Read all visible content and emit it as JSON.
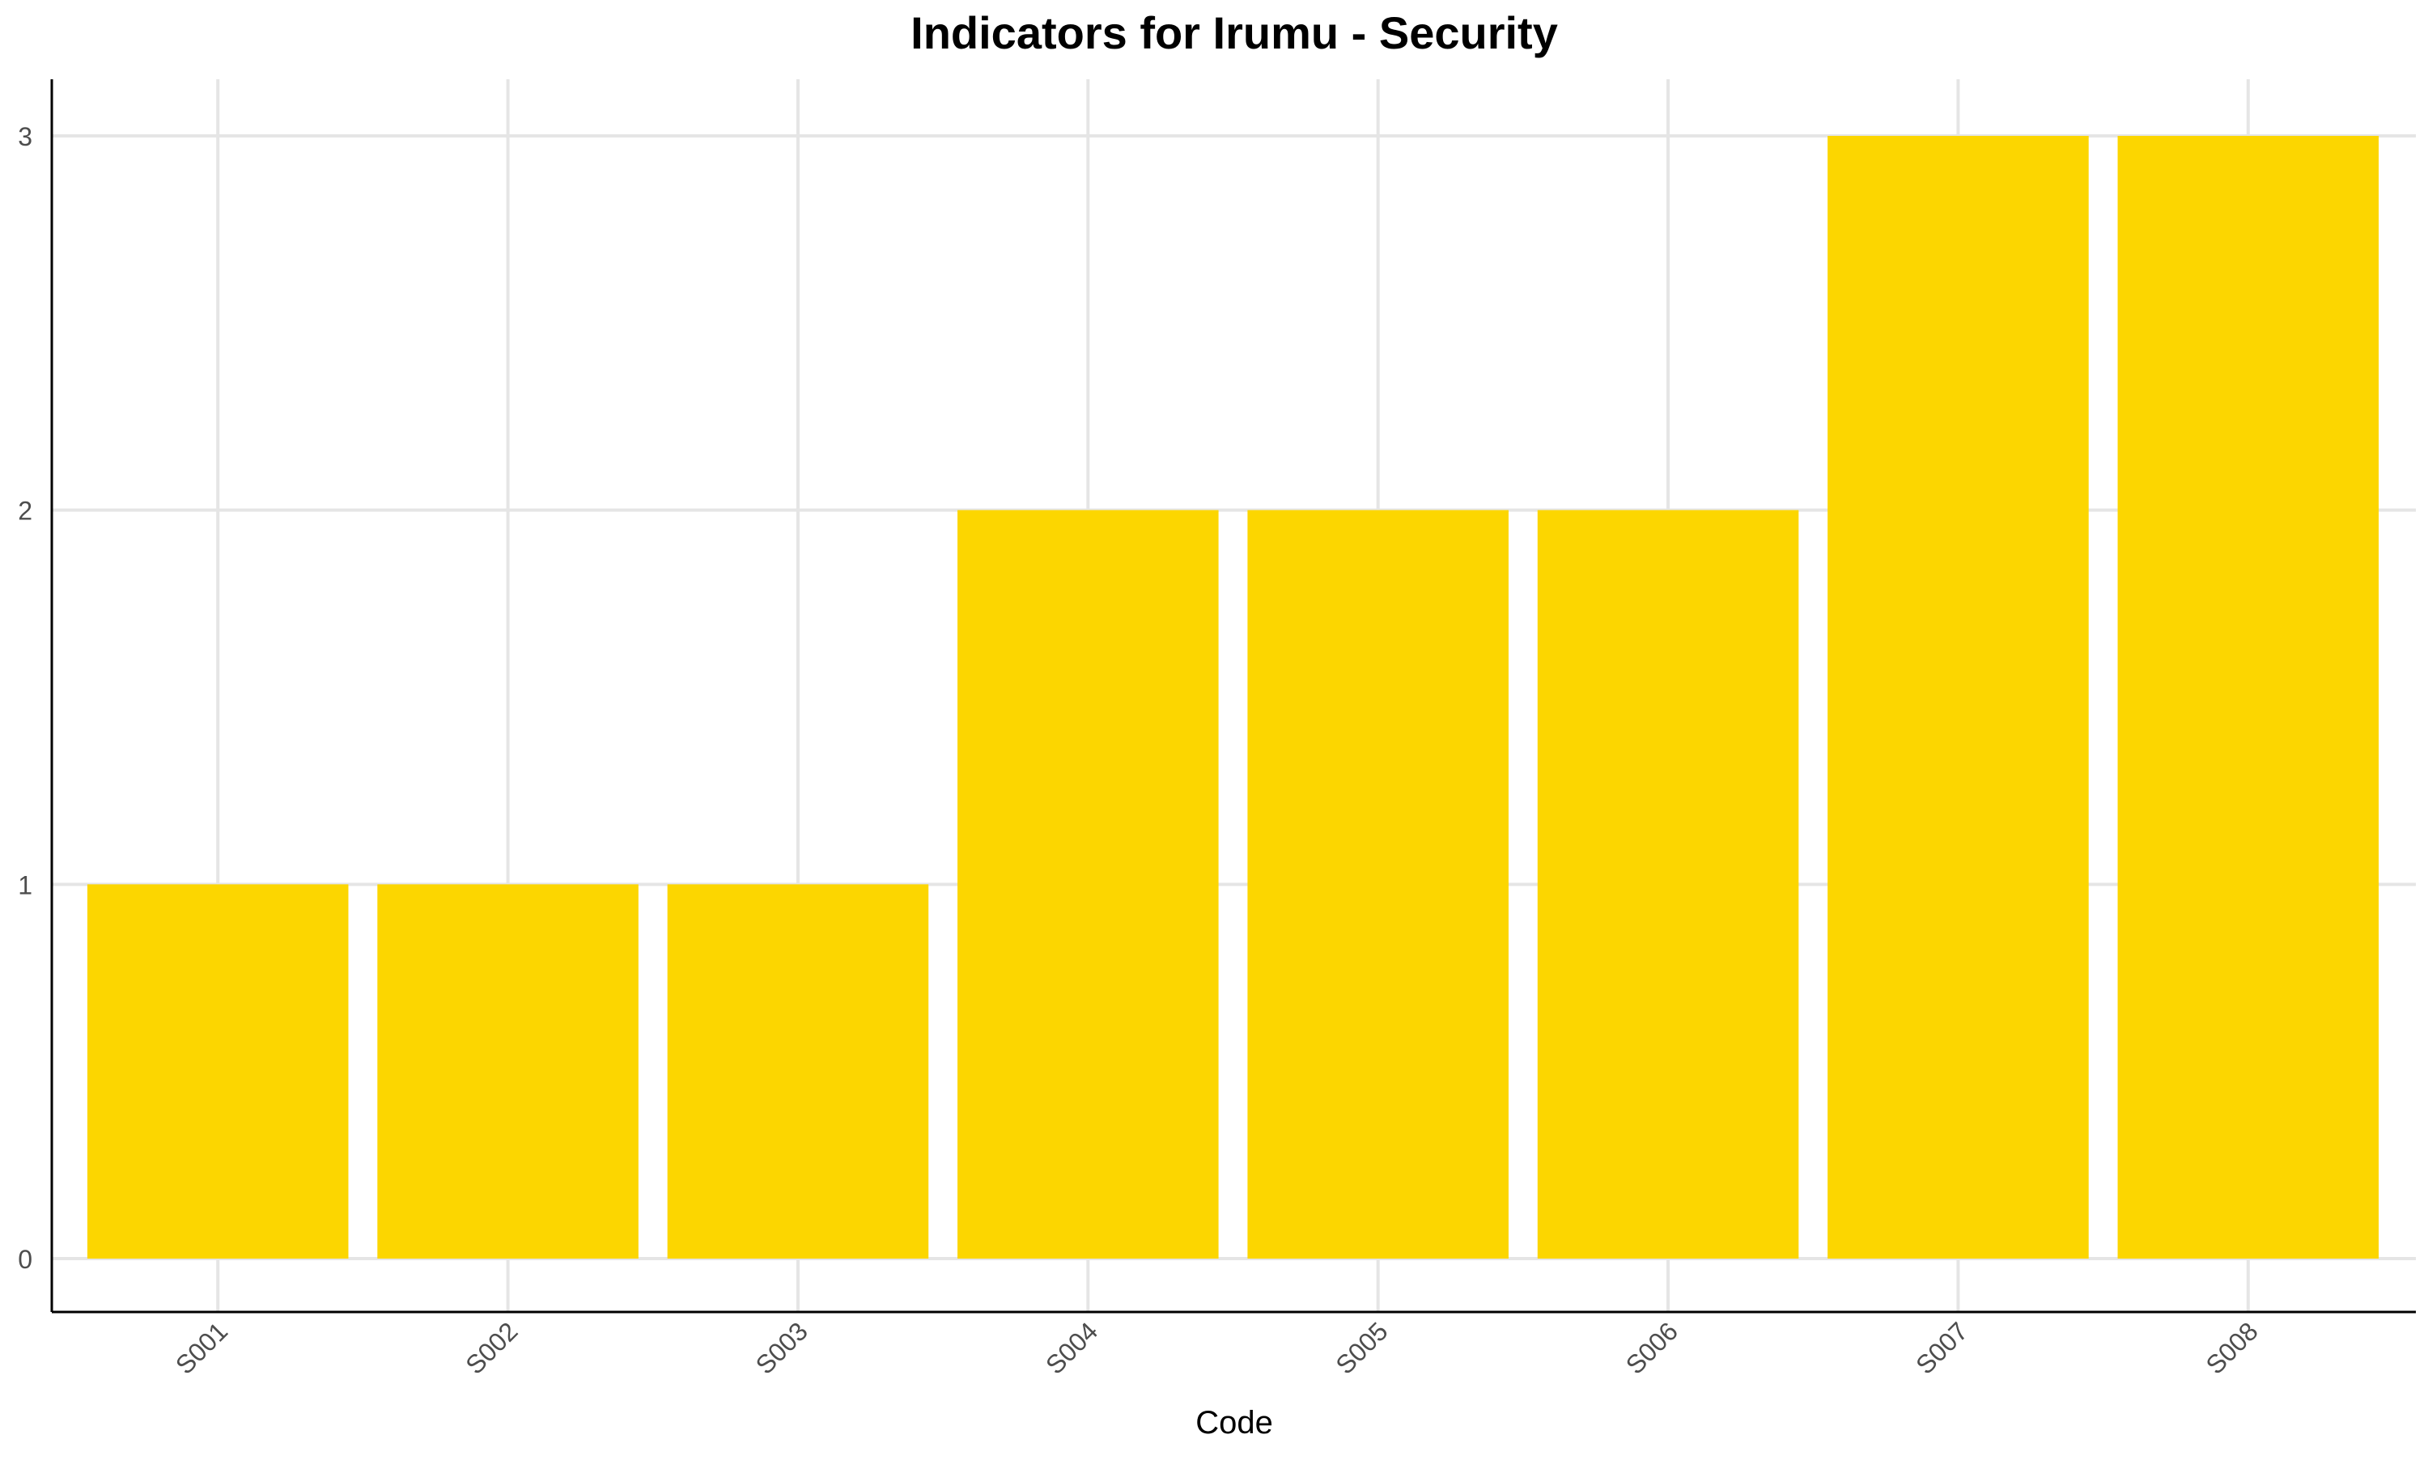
{
  "chart_data": {
    "type": "bar",
    "title": "Indicators for Irumu - Security",
    "xlabel": "Code",
    "ylabel": "",
    "categories": [
      "S001",
      "S002",
      "S003",
      "S004",
      "S005",
      "S006",
      "S007",
      "S008"
    ],
    "values": [
      1,
      1,
      1,
      2,
      2,
      2,
      3,
      3
    ],
    "ylim": [
      0,
      3
    ],
    "yticks": [
      "0",
      "1",
      "2",
      "3"
    ],
    "grid": true,
    "legend": "none",
    "bar_color": "#FCD600",
    "grid_color": "#E5E5E5",
    "axis_color": "#000000"
  }
}
